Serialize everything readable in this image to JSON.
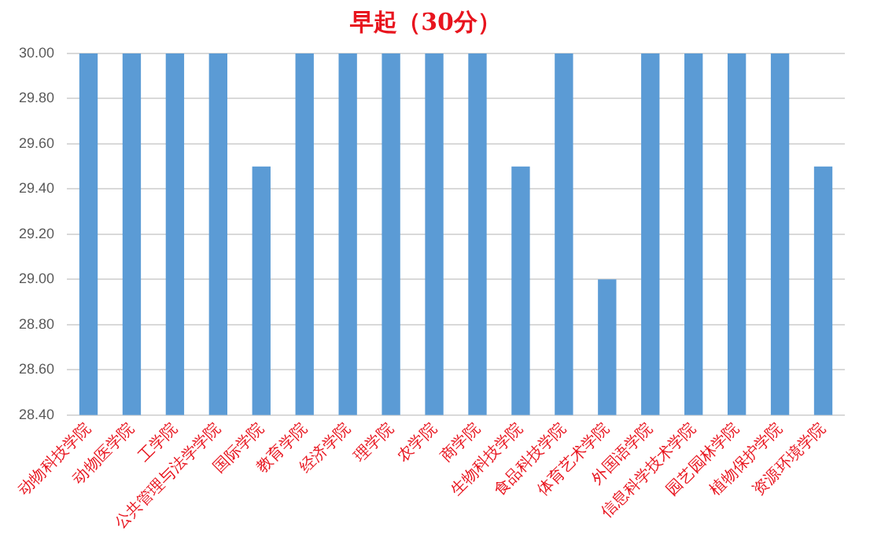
{
  "chart_data": {
    "type": "bar",
    "title": "早起（30分）",
    "categories": [
      "动物科技学院",
      "动物医学院",
      "工学院",
      "公共管理与法学学院",
      "国际学院",
      "教育学院",
      "经济学院",
      "理学院",
      "农学院",
      "商学院",
      "生物科技学院",
      "食品科技学院",
      "体育艺术学院",
      "外国语学院",
      "信息科学技术学院",
      "园艺园林学院",
      "植物保护学院",
      "资源环境学院"
    ],
    "values": [
      30,
      30,
      30,
      30,
      29.5,
      30,
      30,
      30,
      30,
      30,
      29.5,
      30,
      29,
      30,
      30,
      30,
      30,
      29.5
    ],
    "color": "#5b9bd5",
    "ylim": [
      28.4,
      30
    ],
    "yticks": [
      {
        "value": 28.4,
        "label": "28.40"
      },
      {
        "value": 28.6,
        "label": "28.60"
      },
      {
        "value": 28.8,
        "label": "28.80"
      },
      {
        "value": 29,
        "label": "29.00"
      },
      {
        "value": 29.2,
        "label": "29.20"
      },
      {
        "value": 29.4,
        "label": "29.40"
      },
      {
        "value": 29.6,
        "label": "29.60"
      },
      {
        "value": 29.8,
        "label": "29.80"
      },
      {
        "value": 30,
        "label": "30.00"
      }
    ],
    "grid": "y",
    "legend": false
  }
}
